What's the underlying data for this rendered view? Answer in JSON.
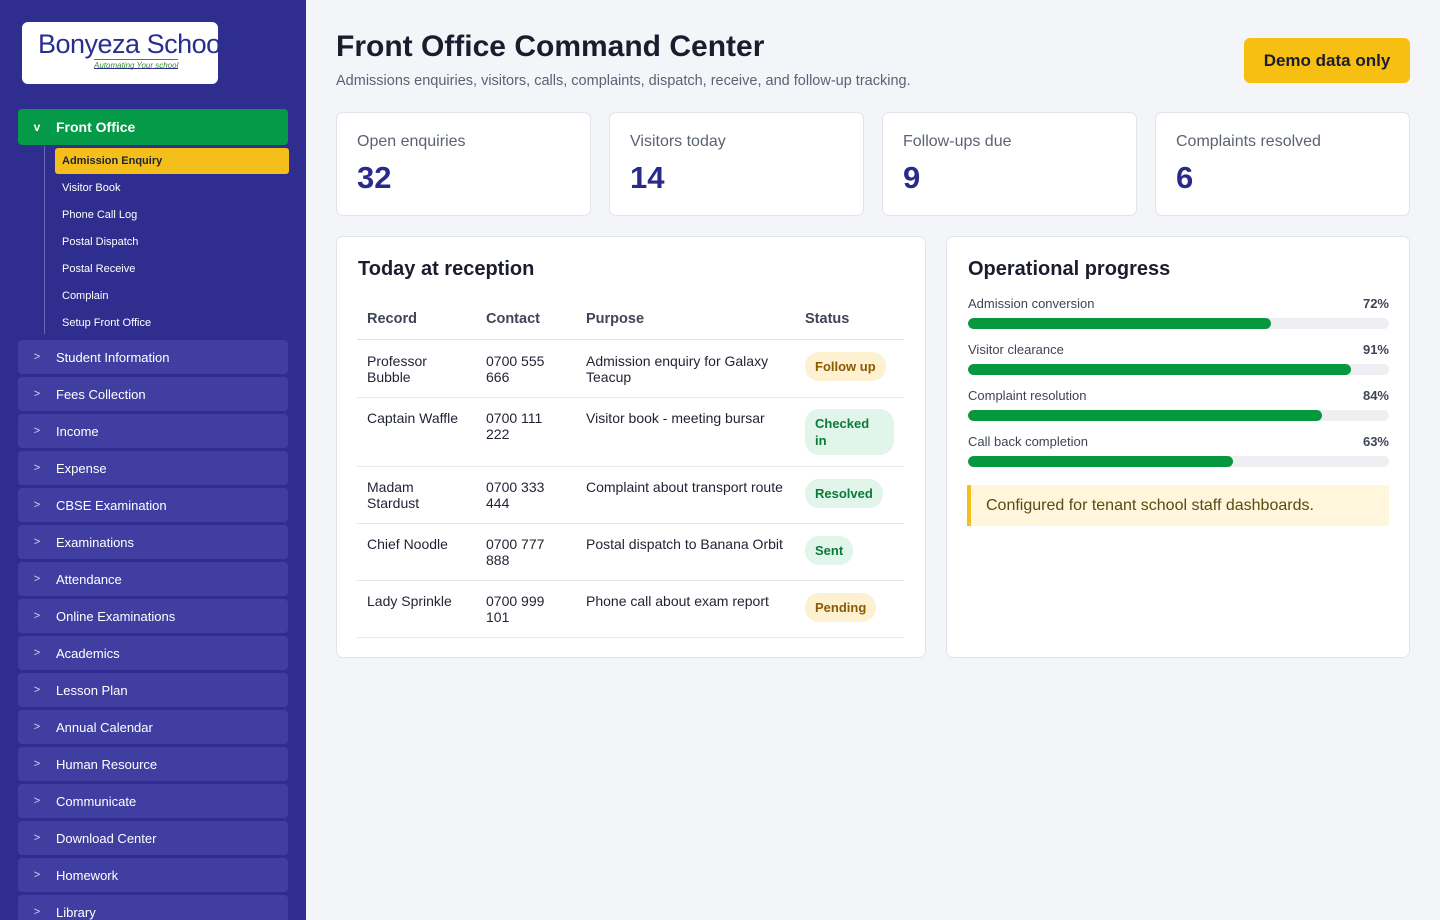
{
  "brand": {
    "logo_text": "Bonyeza School",
    "logo_tagline": "Automating Your school"
  },
  "sidebar": {
    "active_group": {
      "chevron": "v",
      "label": "Front Office"
    },
    "sub_items": [
      {
        "label": "Admission Enquiry",
        "active": true
      },
      {
        "label": "Visitor Book"
      },
      {
        "label": "Phone Call Log"
      },
      {
        "label": "Postal Dispatch"
      },
      {
        "label": "Postal Receive"
      },
      {
        "label": "Complain"
      },
      {
        "label": "Setup Front Office"
      }
    ],
    "items": [
      {
        "chevron": ">",
        "label": "Student Information"
      },
      {
        "chevron": ">",
        "label": "Fees Collection"
      },
      {
        "chevron": ">",
        "label": "Income"
      },
      {
        "chevron": ">",
        "label": "Expense"
      },
      {
        "chevron": ">",
        "label": "CBSE Examination"
      },
      {
        "chevron": ">",
        "label": "Examinations"
      },
      {
        "chevron": ">",
        "label": "Attendance"
      },
      {
        "chevron": ">",
        "label": "Online Examinations"
      },
      {
        "chevron": ">",
        "label": "Academics"
      },
      {
        "chevron": ">",
        "label": "Lesson Plan"
      },
      {
        "chevron": ">",
        "label": "Annual Calendar"
      },
      {
        "chevron": ">",
        "label": "Human Resource"
      },
      {
        "chevron": ">",
        "label": "Communicate"
      },
      {
        "chevron": ">",
        "label": "Download Center"
      },
      {
        "chevron": ">",
        "label": "Homework"
      },
      {
        "chevron": ">",
        "label": "Library"
      }
    ]
  },
  "header": {
    "title": "Front Office Command Center",
    "subtitle": "Admissions enquiries, visitors, calls, complaints, dispatch, receive, and follow-up tracking.",
    "demo_button": "Demo data only"
  },
  "stats": [
    {
      "label": "Open enquiries",
      "value": "32"
    },
    {
      "label": "Visitors today",
      "value": "14"
    },
    {
      "label": "Follow-ups due",
      "value": "9"
    },
    {
      "label": "Complaints resolved",
      "value": "6"
    }
  ],
  "reception": {
    "title": "Today at reception",
    "columns": [
      "Record",
      "Contact",
      "Purpose",
      "Status"
    ],
    "rows": [
      {
        "record": "Professor Bubble",
        "contact": "0700 555 666",
        "purpose": "Admission enquiry for Galaxy Teacup",
        "status": "Follow up",
        "status_kind": "warn"
      },
      {
        "record": "Captain Waffle",
        "contact": "0700 111 222",
        "purpose": "Visitor book - meeting bursar",
        "status": "Checked in",
        "status_kind": "ok"
      },
      {
        "record": "Madam Stardust",
        "contact": "0700 333 444",
        "purpose": "Complaint about transport route",
        "status": "Resolved",
        "status_kind": "ok"
      },
      {
        "record": "Chief Noodle",
        "contact": "0700 777 888",
        "purpose": "Postal dispatch to Banana Orbit",
        "status": "Sent",
        "status_kind": "ok"
      },
      {
        "record": "Lady Sprinkle",
        "contact": "0700 999 101",
        "purpose": "Phone call about exam report",
        "status": "Pending",
        "status_kind": "warn"
      }
    ]
  },
  "progress": {
    "title": "Operational progress",
    "items": [
      {
        "label": "Admission conversion",
        "percent_text": "72%",
        "fraction": 0.72
      },
      {
        "label": "Visitor clearance",
        "percent_text": "91%",
        "fraction": 0.91
      },
      {
        "label": "Complaint resolution",
        "percent_text": "84%",
        "fraction": 0.84
      },
      {
        "label": "Call back completion",
        "percent_text": "63%",
        "fraction": 0.63
      }
    ],
    "note": "Configured for tenant school staff dashboards."
  },
  "colors": {
    "sidebar": "#2f2e8f",
    "accent_green": "#059a47",
    "accent_yellow": "#f4bf1b",
    "stat_value": "#2a2a8a"
  }
}
